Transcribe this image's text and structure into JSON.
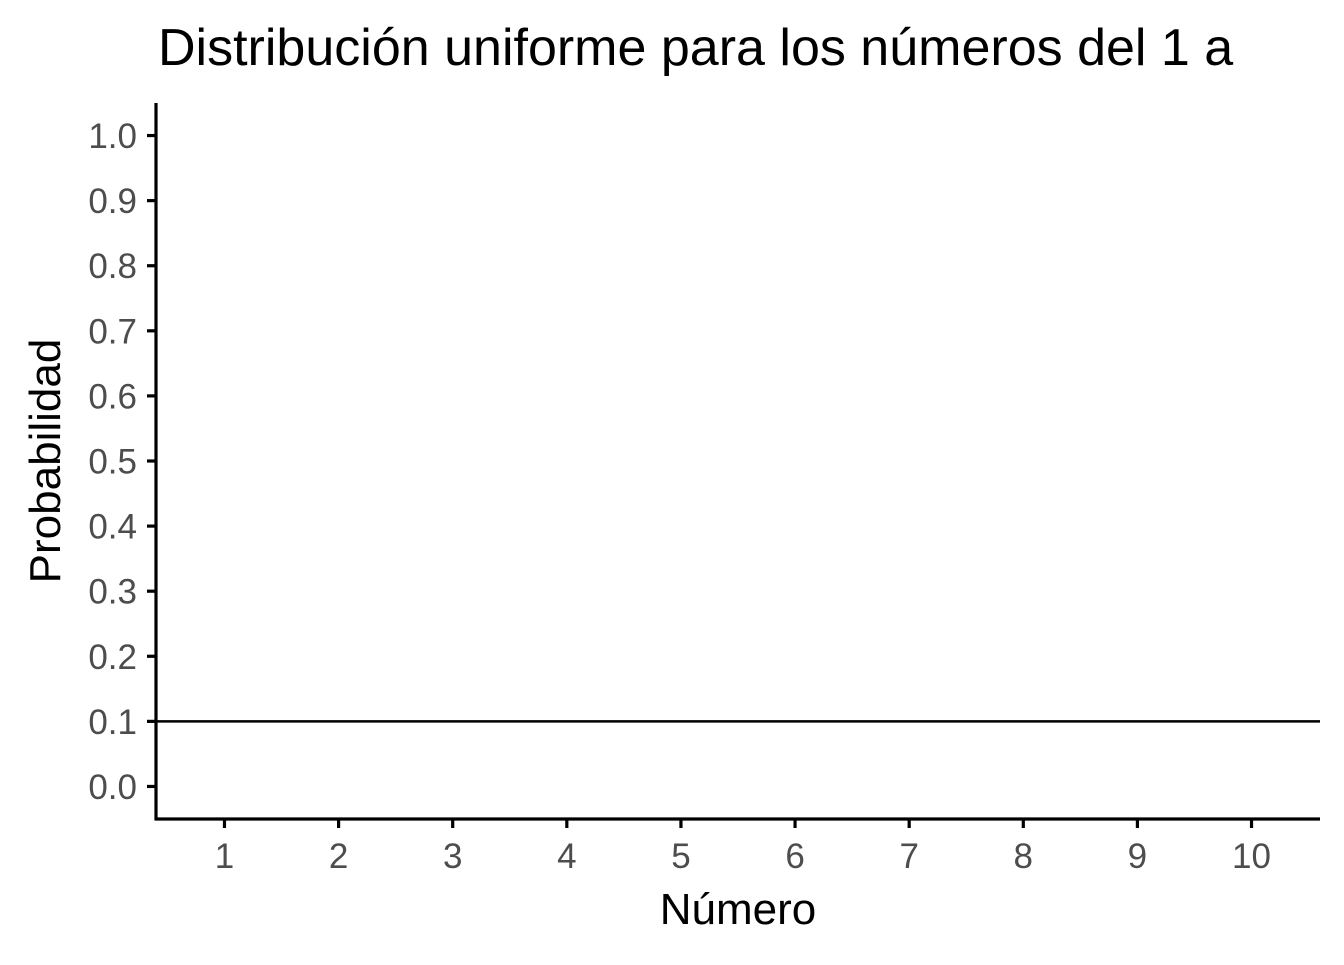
{
  "chart_data": {
    "type": "line",
    "title": "Distribución uniforme para los números del 1 a",
    "xlabel": "Número",
    "ylabel": "Probabilidad",
    "x": [
      1,
      2,
      3,
      4,
      5,
      6,
      7,
      8,
      9,
      10
    ],
    "x_tick_labels": [
      "1",
      "2",
      "3",
      "4",
      "5",
      "6",
      "7",
      "8",
      "9",
      "10"
    ],
    "y_tick_labels": [
      "0.0",
      "0.1",
      "0.2",
      "0.3",
      "0.4",
      "0.5",
      "0.6",
      "0.7",
      "0.8",
      "0.9",
      "1.0"
    ],
    "y_ticks": [
      0.0,
      0.1,
      0.2,
      0.3,
      0.4,
      0.5,
      0.6,
      0.7,
      0.8,
      0.9,
      1.0
    ],
    "series": [
      {
        "values": [
          0.1,
          0.1,
          0.1,
          0.1,
          0.1,
          0.1,
          0.1,
          0.1,
          0.1,
          0.1
        ]
      }
    ],
    "xlim": [
      0.4,
      10.6
    ],
    "ylim": [
      -0.05,
      1.05
    ],
    "grid": false,
    "line_color": "#000000",
    "axis_color": "#000000",
    "tick_label_color": "#4d4d4d"
  }
}
